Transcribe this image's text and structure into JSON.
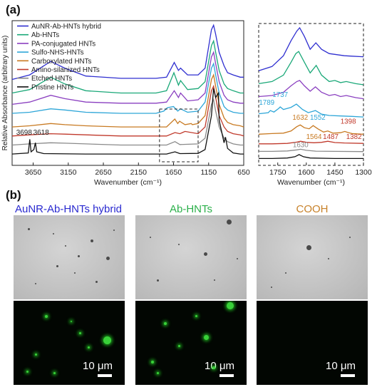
{
  "panels": {
    "a": "(a)",
    "b": "(b)"
  },
  "chart_data": [
    {
      "type": "line",
      "title": "",
      "xlabel": "Wavenumber (cm⁻¹)",
      "ylabel": "Relative Absorbance (arbitrary units)",
      "xlim": [
        3950,
        650
      ],
      "x_reversed": true,
      "xticks": [
        3650,
        3150,
        2650,
        2150,
        1650,
        1150,
        650
      ],
      "legend_placement": "top-left",
      "series": [
        {
          "name": "AuNR-Ab-HNTs hybrid",
          "color": "#2f2fd0",
          "x": [
            3950,
            3700,
            3400,
            3200,
            2900,
            2400,
            1900,
            1750,
            1640,
            1580,
            1550,
            1450,
            1300,
            1200,
            1110,
            1080,
            1050,
            1000,
            930,
            880,
            800,
            700,
            650
          ],
          "y": [
            0.76,
            0.78,
            0.84,
            0.81,
            0.775,
            0.765,
            0.765,
            0.77,
            0.835,
            0.8,
            0.81,
            0.78,
            0.78,
            0.81,
            0.98,
            1.0,
            0.96,
            0.88,
            0.82,
            0.79,
            0.78,
            0.77,
            0.77
          ]
        },
        {
          "name": "Ab-HNTs",
          "color": "#1aa878",
          "x": [
            3950,
            3700,
            3400,
            3200,
            2900,
            2400,
            1900,
            1750,
            1645,
            1580,
            1550,
            1450,
            1300,
            1200,
            1110,
            1080,
            1050,
            1000,
            930,
            880,
            800,
            700,
            650
          ],
          "y": [
            0.7,
            0.715,
            0.77,
            0.74,
            0.71,
            0.7,
            0.7,
            0.71,
            0.79,
            0.735,
            0.755,
            0.715,
            0.72,
            0.75,
            0.91,
            0.93,
            0.88,
            0.8,
            0.74,
            0.72,
            0.71,
            0.7,
            0.7
          ]
        },
        {
          "name": "PA-conjugated HNTs",
          "color": "#8a3fc0",
          "x": [
            3950,
            3700,
            3400,
            3200,
            2900,
            2400,
            1900,
            1750,
            1640,
            1580,
            1550,
            1450,
            1300,
            1200,
            1110,
            1080,
            1050,
            1000,
            930,
            880,
            800,
            700,
            650
          ],
          "y": [
            0.65,
            0.66,
            0.69,
            0.675,
            0.66,
            0.655,
            0.655,
            0.66,
            0.71,
            0.68,
            0.7,
            0.665,
            0.67,
            0.7,
            0.86,
            0.88,
            0.83,
            0.75,
            0.69,
            0.67,
            0.66,
            0.655,
            0.655
          ]
        },
        {
          "name": "Sulfo-NHS-HNTs",
          "color": "#2ea6d8",
          "x": [
            3950,
            3700,
            3400,
            3200,
            2900,
            2400,
            1900,
            1789,
            1737,
            1650,
            1590,
            1552,
            1450,
            1300,
            1200,
            1110,
            1080,
            1050,
            1000,
            930,
            880,
            800,
            700,
            650
          ],
          "y": [
            0.61,
            0.615,
            0.63,
            0.625,
            0.615,
            0.61,
            0.61,
            0.62,
            0.635,
            0.64,
            0.62,
            0.63,
            0.615,
            0.62,
            0.66,
            0.81,
            0.83,
            0.78,
            0.7,
            0.64,
            0.625,
            0.615,
            0.61,
            0.61
          ]
        },
        {
          "name": "Carboxylated HNTs",
          "color": "#c87a22",
          "x": [
            3950,
            3700,
            3400,
            3200,
            2900,
            2400,
            1900,
            1750,
            1632,
            1590,
            1564,
            1487,
            1398,
            1382,
            1300,
            1200,
            1110,
            1080,
            1050,
            1000,
            930,
            880,
            800,
            700,
            650
          ],
          "y": [
            0.55,
            0.555,
            0.565,
            0.56,
            0.555,
            0.55,
            0.55,
            0.55,
            0.585,
            0.565,
            0.575,
            0.56,
            0.565,
            0.56,
            0.565,
            0.6,
            0.76,
            0.78,
            0.73,
            0.65,
            0.59,
            0.57,
            0.56,
            0.555,
            0.55
          ]
        },
        {
          "name": "Amino-silanized HNTs",
          "color": "#c0392b",
          "x": [
            3950,
            3700,
            3400,
            3200,
            2900,
            2400,
            1900,
            1750,
            1630,
            1560,
            1487,
            1300,
            1200,
            1110,
            1080,
            1050,
            1000,
            930,
            880,
            800,
            700,
            650
          ],
          "y": [
            0.51,
            0.515,
            0.52,
            0.518,
            0.515,
            0.51,
            0.51,
            0.51,
            0.525,
            0.52,
            0.53,
            0.52,
            0.55,
            0.71,
            0.73,
            0.68,
            0.6,
            0.55,
            0.53,
            0.52,
            0.515,
            0.51
          ]
        },
        {
          "name": "Etched HNTs",
          "color": "#8a8a8a",
          "x": [
            3950,
            3700,
            3400,
            3200,
            2900,
            2400,
            1900,
            1750,
            1630,
            1560,
            1300,
            1200,
            1110,
            1080,
            1050,
            1000,
            930,
            880,
            800,
            700,
            650
          ],
          "y": [
            0.47,
            0.475,
            0.48,
            0.478,
            0.475,
            0.47,
            0.47,
            0.47,
            0.485,
            0.472,
            0.475,
            0.5,
            0.65,
            0.67,
            0.62,
            0.55,
            0.5,
            0.485,
            0.475,
            0.47,
            0.47
          ]
        },
        {
          "name": "Pristine HNTs",
          "color": "#111111",
          "x": [
            3950,
            3720,
            3698,
            3680,
            3640,
            3618,
            3600,
            3500,
            2900,
            2400,
            1900,
            1750,
            1630,
            1560,
            1300,
            1200,
            1110,
            1080,
            1050,
            1010,
            1000,
            930,
            910,
            880,
            800,
            700,
            650
          ],
          "y": [
            0.43,
            0.435,
            0.495,
            0.44,
            0.45,
            0.48,
            0.44,
            0.432,
            0.43,
            0.43,
            0.43,
            0.43,
            0.44,
            0.432,
            0.433,
            0.45,
            0.6,
            0.72,
            0.68,
            0.7,
            0.58,
            0.48,
            0.505,
            0.455,
            0.435,
            0.43,
            0.43
          ]
        }
      ],
      "annotations": [
        {
          "text": "3698",
          "x": 3698
        },
        {
          "text": "3618",
          "x": 3618
        }
      ]
    },
    {
      "type": "line",
      "title": "",
      "xlabel": "Wavenumber (cm⁻¹)",
      "ylabel": "",
      "xlim": [
        1850,
        1300
      ],
      "x_reversed": true,
      "xticks": [
        1750,
        1600,
        1450,
        1300
      ],
      "series": [
        {
          "name": "AuNR-Ab-HNTs hybrid",
          "color": "#2f2fd0",
          "x": [
            1850,
            1780,
            1720,
            1680,
            1650,
            1635,
            1610,
            1580,
            1550,
            1520,
            1480,
            1440,
            1400,
            1360,
            1300
          ],
          "y": [
            0.78,
            0.8,
            0.85,
            0.92,
            0.965,
            0.98,
            0.94,
            0.88,
            0.91,
            0.88,
            0.86,
            0.855,
            0.85,
            0.848,
            0.845
          ]
        },
        {
          "name": "Ab-HNTs",
          "color": "#1aa878",
          "x": [
            1850,
            1780,
            1720,
            1680,
            1655,
            1640,
            1610,
            1580,
            1548,
            1520,
            1480,
            1450,
            1420,
            1390,
            1340,
            1300
          ],
          "y": [
            0.72,
            0.73,
            0.76,
            0.82,
            0.86,
            0.87,
            0.82,
            0.77,
            0.805,
            0.76,
            0.73,
            0.735,
            0.725,
            0.73,
            0.72,
            0.715
          ]
        },
        {
          "name": "PA-conjugated HNTs",
          "color": "#8a3fc0",
          "x": [
            1850,
            1780,
            1720,
            1680,
            1650,
            1635,
            1610,
            1580,
            1552,
            1520,
            1480,
            1450,
            1420,
            1390,
            1340,
            1300
          ],
          "y": [
            0.66,
            0.665,
            0.68,
            0.71,
            0.73,
            0.735,
            0.71,
            0.685,
            0.705,
            0.68,
            0.665,
            0.67,
            0.66,
            0.665,
            0.655,
            0.65
          ]
        },
        {
          "name": "Sulfo-NHS-HNTs",
          "color": "#2ea6d8",
          "x": [
            1850,
            1800,
            1789,
            1770,
            1745,
            1737,
            1720,
            1680,
            1652,
            1620,
            1590,
            1552,
            1520,
            1480,
            1420,
            1360,
            1300
          ],
          "y": [
            0.58,
            0.585,
            0.595,
            0.588,
            0.605,
            0.612,
            0.6,
            0.61,
            0.625,
            0.6,
            0.585,
            0.595,
            0.578,
            0.572,
            0.57,
            0.568,
            0.565
          ]
        },
        {
          "name": "Carboxylated HNTs",
          "color": "#c87a22",
          "x": [
            1850,
            1780,
            1720,
            1680,
            1650,
            1632,
            1610,
            1585,
            1564,
            1540,
            1510,
            1487,
            1460,
            1420,
            1398,
            1382,
            1360,
            1300
          ],
          "y": [
            0.485,
            0.488,
            0.49,
            0.5,
            0.52,
            0.528,
            0.515,
            0.51,
            0.525,
            0.51,
            0.495,
            0.5,
            0.49,
            0.492,
            0.498,
            0.493,
            0.488,
            0.485
          ]
        },
        {
          "name": "Amino-silanized HNTs",
          "color": "#c0392b",
          "x": [
            1850,
            1780,
            1700,
            1650,
            1630,
            1600,
            1560,
            1520,
            1487,
            1450,
            1400,
            1300
          ],
          "y": [
            0.44,
            0.44,
            0.442,
            0.448,
            0.452,
            0.447,
            0.445,
            0.447,
            0.452,
            0.446,
            0.444,
            0.442
          ]
        },
        {
          "name": "Etched HNTs",
          "color": "#8a8a8a",
          "x": [
            1850,
            1780,
            1700,
            1650,
            1630,
            1600,
            1550,
            1450,
            1300
          ],
          "y": [
            0.405,
            0.405,
            0.407,
            0.412,
            0.415,
            0.41,
            0.406,
            0.405,
            0.404
          ]
        },
        {
          "name": "Pristine HNTs",
          "color": "#111111",
          "x": [
            1850,
            1780,
            1700,
            1660,
            1638,
            1615,
            1580,
            1450,
            1300
          ],
          "y": [
            0.372,
            0.372,
            0.374,
            0.38,
            0.39,
            0.38,
            0.374,
            0.372,
            0.372
          ]
        }
      ],
      "annotations": [
        {
          "text": "1789",
          "x": 1789,
          "color": "#2ea6d8"
        },
        {
          "text": "1737",
          "x": 1737,
          "color": "#2ea6d8"
        },
        {
          "text": "1552",
          "x": 1552,
          "color": "#2ea6d8"
        },
        {
          "text": "1632",
          "x": 1632,
          "color": "#c87a22"
        },
        {
          "text": "1564",
          "x": 1564,
          "color": "#c87a22"
        },
        {
          "text": "1398",
          "x": 1398,
          "color": "#c0392b"
        },
        {
          "text": "1487",
          "x": 1487,
          "color": "#c0392b"
        },
        {
          "text": "1382",
          "x": 1382,
          "color": "#c0392b"
        },
        {
          "text": "1630",
          "x": 1630,
          "color": "#8a8a8a"
        }
      ]
    }
  ],
  "microscopy": {
    "columns": [
      {
        "title": "AuNR-Ab-HNTs hybrid",
        "color": "#2a2ad0",
        "scale": "10 μm"
      },
      {
        "title": "Ab-HNTs",
        "color": "#2bb04a",
        "scale": "10 μm"
      },
      {
        "title": "COOH",
        "color": "#c8822a",
        "scale": "10 μm"
      }
    ]
  }
}
